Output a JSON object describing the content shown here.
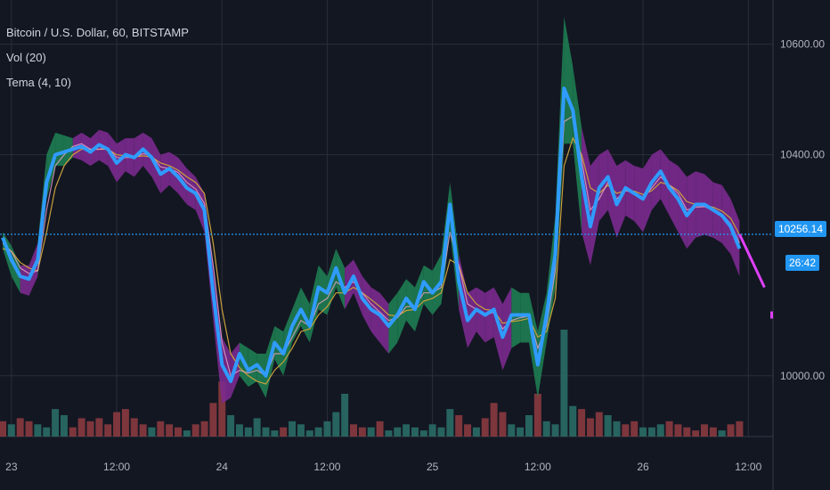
{
  "header": {
    "symbol": "Bitcoin / U.S. Dollar, 60, BITSTAMP",
    "vol": "Vol (20)",
    "tema": "Tema (4, 10)"
  },
  "colors": {
    "background": "#131722",
    "grid": "#2a2e39",
    "tema_line": "#2f9bff",
    "ribbon_up": "#1e7d52",
    "ribbon_down": "#7b2a8f",
    "price_line": "#2196f3",
    "vol_up": "#2a6b66",
    "vol_down": "#8a3a3f"
  },
  "chart_data": {
    "type": "line",
    "title": "Bitcoin / U.S. Dollar, 60, BITSTAMP",
    "y_ticks": [
      10600,
      10400,
      10000
    ],
    "y_tick_labels": [
      "10600.00",
      "10400.00",
      "10000.00"
    ],
    "y_range": [
      9890,
      10680
    ],
    "x_ticks": [
      {
        "i": 1,
        "label": "23"
      },
      {
        "i": 13,
        "label": "12:00"
      },
      {
        "i": 25,
        "label": "24"
      },
      {
        "i": 37,
        "label": "12:00"
      },
      {
        "i": 49,
        "label": "25"
      },
      {
        "i": 61,
        "label": "12:00"
      },
      {
        "i": 73,
        "label": "26"
      },
      {
        "i": 85,
        "label": "12:00"
      }
    ],
    "last_price": "10256.14",
    "countdown": "26:42",
    "series": [
      {
        "key": "tema",
        "values": [
          10250,
          10210,
          10180,
          10175,
          10210,
          10350,
          10400,
          10405,
          10410,
          10415,
          10405,
          10418,
          10410,
          10385,
          10400,
          10395,
          10410,
          10395,
          10365,
          10375,
          10360,
          10340,
          10330,
          10300,
          10150,
          10020,
          9990,
          10040,
          10010,
          10020,
          10000,
          10060,
          10040,
          10090,
          10120,
          10090,
          10160,
          10150,
          10195,
          10150,
          10180,
          10140,
          10120,
          10110,
          10090,
          10110,
          10140,
          10120,
          10170,
          10150,
          10170,
          10310,
          10170,
          10100,
          10120,
          10110,
          10120,
          10070,
          10110,
          10110,
          10110,
          10020,
          10110,
          10220,
          10520,
          10480,
          10360,
          10270,
          10340,
          10360,
          10310,
          10340,
          10330,
          10320,
          10350,
          10370,
          10340,
          10320,
          10290,
          10310,
          10310,
          10300,
          10290,
          10270,
          10230
        ],
        "upper": [
          10260,
          10235,
          10200,
          10200,
          10240,
          10400,
          10440,
          10435,
          10430,
          10440,
          10430,
          10445,
          10440,
          10420,
          10430,
          10430,
          10440,
          10430,
          10400,
          10405,
          10395,
          10375,
          10360,
          10330,
          10200,
          10070,
          10040,
          10060,
          10050,
          10040,
          10040,
          10090,
          10080,
          10120,
          10160,
          10130,
          10200,
          10180,
          10230,
          10195,
          10210,
          10180,
          10160,
          10150,
          10130,
          10150,
          10175,
          10160,
          10200,
          10190,
          10220,
          10350,
          10220,
          10150,
          10160,
          10150,
          10160,
          10130,
          10160,
          10150,
          10150,
          10080,
          10150,
          10290,
          10650,
          10560,
          10450,
          10380,
          10400,
          10410,
          10380,
          10390,
          10380,
          10375,
          10400,
          10410,
          10390,
          10380,
          10360,
          10370,
          10365,
          10350,
          10345,
          10320,
          10280
        ],
        "lower": [
          10230,
          10180,
          10150,
          10145,
          10180,
          10320,
          10380,
          10380,
          10395,
          10390,
          10380,
          10390,
          10380,
          10350,
          10370,
          10360,
          10380,
          10360,
          10330,
          10345,
          10330,
          10310,
          10300,
          10260,
          10100,
          9950,
          9960,
          10000,
          9980,
          9990,
          9960,
          10030,
          10000,
          10060,
          10090,
          10060,
          10120,
          10110,
          10160,
          10120,
          10150,
          10110,
          10080,
          10060,
          10040,
          10060,
          10100,
          10080,
          10130,
          10110,
          10130,
          10260,
          10120,
          10050,
          10080,
          10060,
          10070,
          10010,
          10050,
          10060,
          10060,
          9960,
          10060,
          10160,
          10420,
          10420,
          10260,
          10200,
          10280,
          10300,
          10250,
          10290,
          10280,
          10260,
          10300,
          10320,
          10290,
          10260,
          10230,
          10250,
          10255,
          10250,
          10240,
          10220,
          10180
        ],
        "sign": [
          1,
          1,
          -1,
          -1,
          1,
          1,
          1,
          1,
          -1,
          -1,
          -1,
          -1,
          -1,
          -1,
          -1,
          -1,
          -1,
          -1,
          -1,
          -1,
          -1,
          -1,
          -1,
          -1,
          -1,
          -1,
          -1,
          1,
          1,
          1,
          1,
          1,
          1,
          1,
          1,
          1,
          1,
          1,
          1,
          -1,
          -1,
          -1,
          -1,
          -1,
          1,
          1,
          1,
          1,
          1,
          1,
          1,
          1,
          -1,
          -1,
          -1,
          -1,
          -1,
          -1,
          1,
          1,
          1,
          1,
          1,
          1,
          1,
          1,
          -1,
          -1,
          -1,
          -1,
          -1,
          -1,
          -1,
          -1,
          -1,
          -1,
          -1,
          -1,
          -1,
          -1,
          -1,
          -1,
          -1,
          -1,
          -1
        ]
      },
      {
        "key": "signal_fast",
        "values": [
          10240,
          10225,
          10195,
          10185,
          10190,
          10300,
          10380,
          10400,
          10415,
          10420,
          10410,
          10410,
          10412,
          10395,
          10395,
          10395,
          10402,
          10398,
          10378,
          10375,
          10368,
          10350,
          10338,
          10312,
          10200,
          10060,
          10000,
          10010,
          10005,
          10010,
          10000,
          10040,
          10040,
          10070,
          10100,
          10090,
          10130,
          10140,
          10170,
          10160,
          10170,
          10150,
          10130,
          10115,
          10100,
          10105,
          10125,
          10125,
          10150,
          10150,
          10160,
          10260,
          10200,
          10130,
          10120,
          10110,
          10115,
          10085,
          10100,
          10105,
          10108,
          10050,
          10090,
          10190,
          10460,
          10470,
          10390,
          10300,
          10320,
          10350,
          10320,
          10335,
          10332,
          10322,
          10340,
          10360,
          10345,
          10330,
          10300,
          10305,
          10306,
          10300,
          10292,
          10275,
          10240
        ]
      },
      {
        "key": "signal_slow",
        "values": [
          10230,
          10225,
          10205,
          10195,
          10190,
          10260,
          10340,
          10380,
          10400,
          10410,
          10410,
          10410,
          10410,
          10400,
          10398,
          10396,
          10398,
          10396,
          10385,
          10380,
          10372,
          10360,
          10350,
          10330,
          10240,
          10120,
          10040,
          10015,
          10000,
          9990,
          9985,
          10010,
          10025,
          10050,
          10080,
          10085,
          10110,
          10125,
          10150,
          10150,
          10160,
          10150,
          10138,
          10125,
          10110,
          10108,
          10118,
          10120,
          10135,
          10140,
          10150,
          10210,
          10200,
          10150,
          10130,
          10120,
          10118,
          10095,
          10098,
          10100,
          10104,
          10070,
          10080,
          10140,
          10380,
          10430,
          10400,
          10340,
          10330,
          10345,
          10330,
          10335,
          10334,
          10328,
          10335,
          10350,
          10345,
          10335,
          10315,
          10310,
          10308,
          10305,
          10298,
          10285,
          10255
        ]
      },
      {
        "key": "volume",
        "values": [
          5,
          4,
          6,
          5,
          4,
          3,
          9,
          7,
          3,
          6,
          5,
          6,
          4,
          8,
          9,
          6,
          4,
          3,
          5,
          4,
          3,
          2,
          4,
          5,
          11,
          18,
          7,
          4,
          3,
          6,
          3,
          2,
          3,
          5,
          4,
          2,
          3,
          5,
          8,
          14,
          4,
          3,
          3,
          5,
          2,
          3,
          4,
          3,
          2,
          4,
          3,
          9,
          7,
          4,
          3,
          6,
          11,
          8,
          4,
          3,
          7,
          14,
          5,
          4,
          35,
          10,
          9,
          6,
          8,
          7,
          5,
          4,
          5,
          3,
          3,
          4,
          5,
          4,
          3,
          2,
          4,
          3,
          2,
          4,
          5
        ],
        "sign": [
          -1,
          1,
          -1,
          -1,
          1,
          1,
          1,
          1,
          -1,
          -1,
          -1,
          -1,
          -1,
          -1,
          -1,
          -1,
          -1,
          1,
          -1,
          -1,
          -1,
          1,
          -1,
          -1,
          -1,
          -1,
          1,
          1,
          1,
          1,
          1,
          1,
          -1,
          1,
          1,
          1,
          1,
          1,
          1,
          1,
          -1,
          -1,
          1,
          -1,
          1,
          1,
          1,
          1,
          1,
          1,
          1,
          1,
          -1,
          -1,
          1,
          -1,
          -1,
          -1,
          1,
          1,
          1,
          -1,
          1,
          1,
          1,
          1,
          -1,
          -1,
          -1,
          1,
          1,
          -1,
          -1,
          1,
          1,
          1,
          -1,
          -1,
          -1,
          -1,
          -1,
          -1,
          1,
          -1,
          -1
        ]
      }
    ],
    "forecast": [
      10256,
      10160,
      10110
    ]
  }
}
